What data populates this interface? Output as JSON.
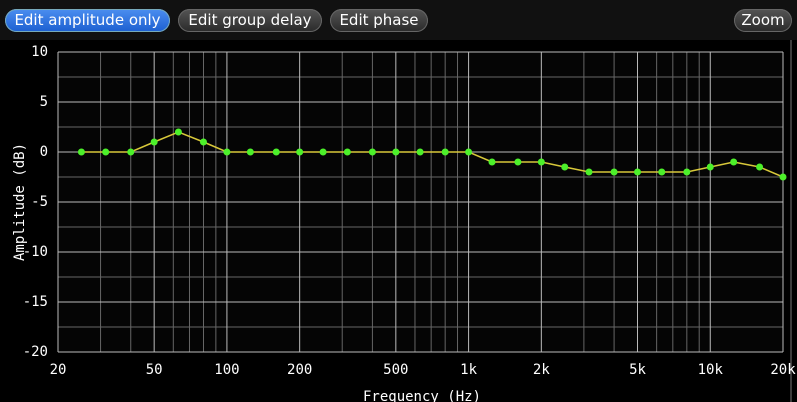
{
  "toolbar": {
    "buttons": [
      "Edit amplitude only",
      "Edit group delay",
      "Edit phase"
    ],
    "zoom": "Zoom"
  },
  "chart_data": {
    "type": "line",
    "xlabel": "Frequency (Hz)",
    "ylabel": "Amplitude (dB)",
    "xscale": "log",
    "x": [
      25,
      31.5,
      40,
      50,
      63,
      80,
      100,
      125,
      160,
      200,
      250,
      315,
      400,
      500,
      630,
      800,
      1000,
      1250,
      1600,
      2000,
      2500,
      3150,
      4000,
      5000,
      6300,
      8000,
      10000,
      12500,
      16000,
      20000
    ],
    "series": [
      {
        "color": "#d8c83a",
        "marker_color": "#4cf02a",
        "values": [
          0,
          0,
          0,
          1,
          2,
          1,
          0,
          0,
          0,
          0,
          0,
          0,
          0,
          0,
          0,
          0,
          0,
          -1,
          -1,
          -1,
          -1.5,
          -2,
          -2,
          -2,
          -2,
          -2,
          -1.5,
          -1,
          -1.5,
          -2.5
        ]
      }
    ],
    "xlim": [
      20,
      20000
    ],
    "xticks": [
      20,
      50,
      100,
      200,
      500,
      {
        "value": 1000,
        "label": "1k"
      },
      {
        "value": 2000,
        "label": "2k"
      },
      {
        "value": 5000,
        "label": "5k"
      },
      {
        "value": 10000,
        "label": "10k"
      },
      {
        "value": 20000,
        "label": "20k"
      }
    ],
    "x_minor_grid": [
      30,
      40,
      60,
      70,
      80,
      90,
      300,
      400,
      600,
      700,
      800,
      900,
      3000,
      4000,
      6000,
      7000,
      8000,
      9000
    ],
    "ylim": [
      -20,
      10
    ],
    "yticks": [
      10,
      5,
      0,
      -5,
      -10,
      -15,
      -20
    ],
    "y_minor_grid": [
      7.5,
      2.5,
      -2.5,
      -7.5,
      -12.5,
      -17.5
    ],
    "grid": true
  }
}
